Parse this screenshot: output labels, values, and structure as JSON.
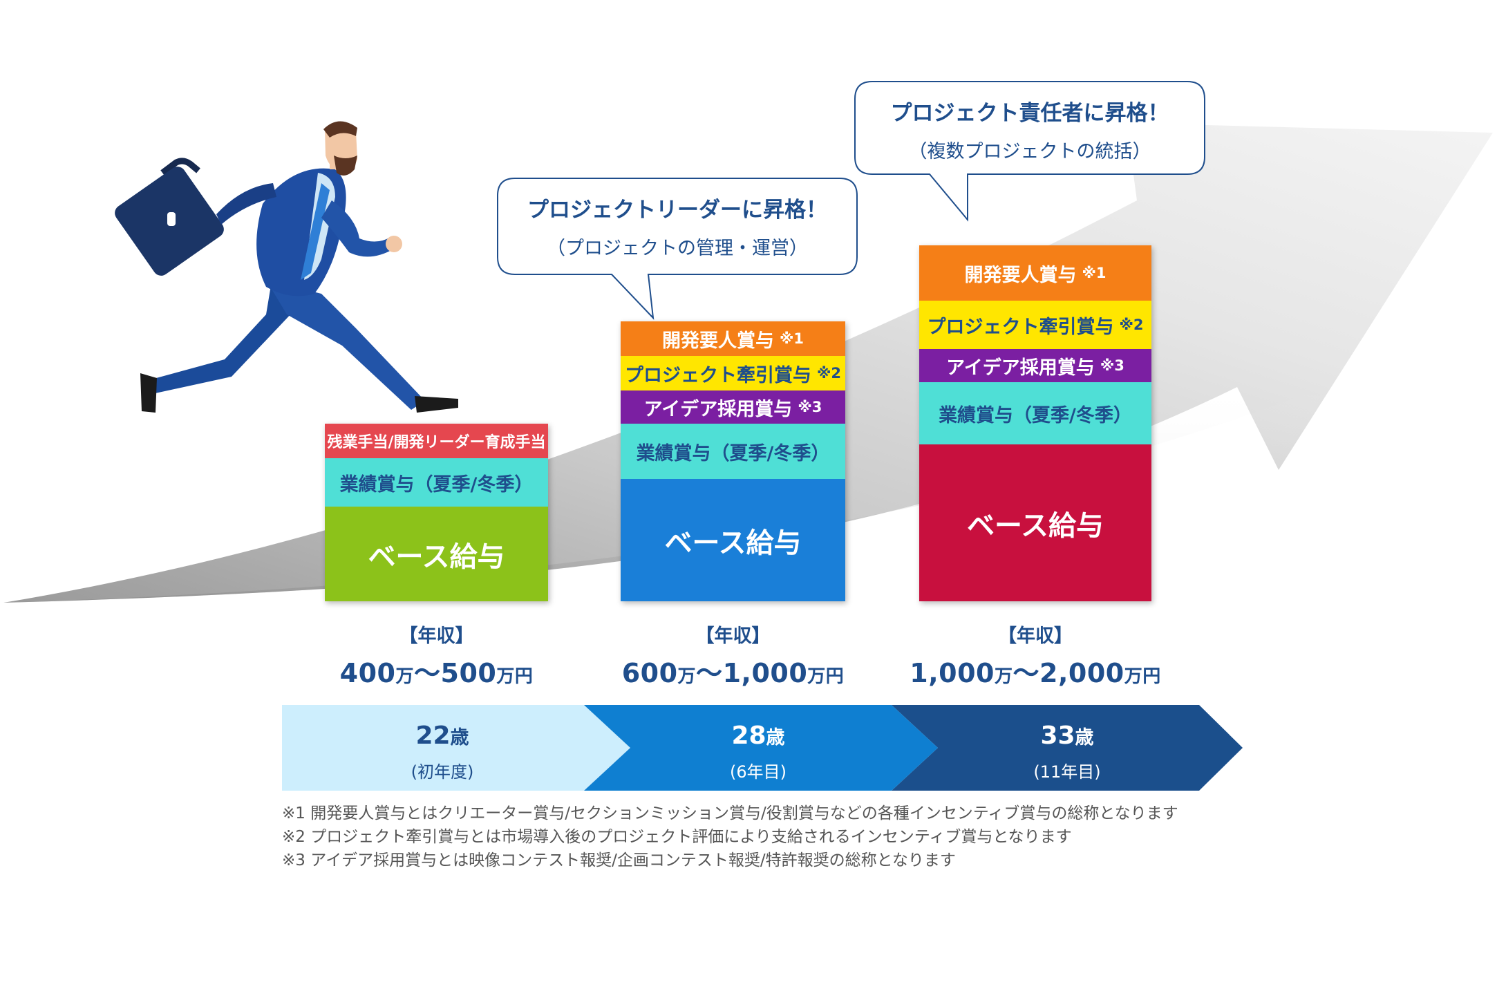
{
  "colors": {
    "navy": "#1f4e8c",
    "orange": "#f57f17",
    "yellow": "#ffe600",
    "purple": "#7b1fa2",
    "teal": "#4fdfd6",
    "green": "#8cc21a",
    "blue": "#1a7fd8",
    "crimson": "#c8103e",
    "salmon": "#e5474f",
    "stage_light": "#cdeefd",
    "stage_mid": "#0f7fd1",
    "stage_dark": "#1b4f8c"
  },
  "illustration": {
    "figure": "running-businessman-with-briefcase",
    "arrow": "growth-arrow"
  },
  "bubbles": [
    {
      "title": "プロジェクトリーダーに昇格！",
      "subtitle": "（プロジェクトの管理・運営）"
    },
    {
      "title": "プロジェクト責任者に昇格！",
      "subtitle": "（複数プロジェクトの統括）"
    }
  ],
  "columns": [
    {
      "blocks": [
        {
          "label": "残業手当/開発リーダー育成手当",
          "note": ""
        },
        {
          "label": "業績賞与（夏季/冬季）",
          "note": ""
        },
        {
          "label": "ベース給与",
          "note": ""
        }
      ],
      "income_label": "【年収】",
      "income_from": "400",
      "income_to": "500",
      "unit_man": "万",
      "wave": "〜",
      "unit_manen": "万円"
    },
    {
      "blocks": [
        {
          "label": "開発要人賞与",
          "note": "※1"
        },
        {
          "label": "プロジェクト牽引賞与",
          "note": "※2"
        },
        {
          "label": "アイデア採用賞与",
          "note": "※3"
        },
        {
          "label": "業績賞与（夏季/冬季）",
          "note": ""
        },
        {
          "label": "ベース給与",
          "note": ""
        }
      ],
      "income_label": "【年収】",
      "income_from": "600",
      "income_to": "1,000",
      "unit_man": "万",
      "wave": "〜",
      "unit_manen": "万円"
    },
    {
      "blocks": [
        {
          "label": "開発要人賞与",
          "note": "※1"
        },
        {
          "label": "プロジェクト牽引賞与",
          "note": "※2"
        },
        {
          "label": "アイデア採用賞与",
          "note": "※3"
        },
        {
          "label": "業績賞与（夏季/冬季）",
          "note": ""
        },
        {
          "label": "ベース給与",
          "note": ""
        }
      ],
      "income_label": "【年収】",
      "income_from": "1,000",
      "income_to": "2,000",
      "unit_man": "万",
      "wave": "〜",
      "unit_manen": "万円"
    }
  ],
  "stages": [
    {
      "age": "22",
      "age_unit": "歳",
      "sub": "(初年度)"
    },
    {
      "age": "28",
      "age_unit": "歳",
      "sub": "(6年目)"
    },
    {
      "age": "33",
      "age_unit": "歳",
      "sub": "(11年目)"
    }
  ],
  "footnotes": [
    "※1 開発要人賞与とはクリエーター賞与/セクションミッション賞与/役割賞与などの各種インセンティブ賞与の総称となります",
    "※2 プロジェクト牽引賞与とは市場導入後のプロジェクト評価により支給されるインセンティブ賞与となります",
    "※3 アイデア採用賞与とは映像コンテスト報奨/企画コンテスト報奨/特許報奨の総称となります"
  ]
}
